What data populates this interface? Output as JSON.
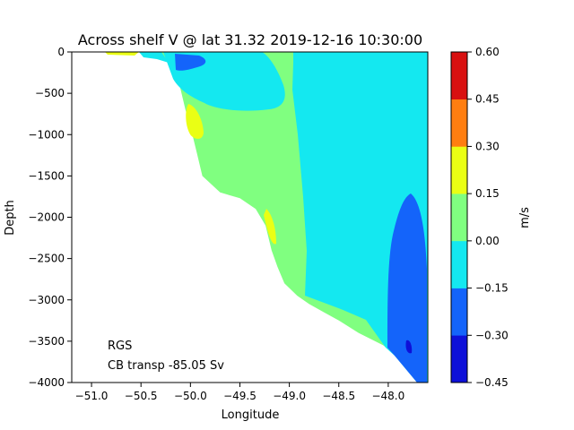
{
  "chart_data": {
    "type": "contourf",
    "title": "Across shelf V @ lat 31.32 2019-12-16 10:30:00",
    "xlabel": "Longitude",
    "ylabel": "Depth",
    "xlim": [
      -51.2,
      -47.6
    ],
    "ylim": [
      -4000,
      0
    ],
    "xticks": [
      -51.0,
      -50.5,
      -50.0,
      -49.5,
      -49.0,
      -48.5,
      -48.0
    ],
    "xtick_labels": [
      "−51.0",
      "−50.5",
      "−50.0",
      "−49.5",
      "−49.0",
      "−48.5",
      "−48.0"
    ],
    "yticks": [
      0,
      -500,
      -1000,
      -1500,
      -2000,
      -2500,
      -3000,
      -3500,
      -4000
    ],
    "ytick_labels": [
      "0",
      "−500",
      "−1000",
      "−1500",
      "−2000",
      "−2500",
      "−3000",
      "−3500",
      "−4000"
    ],
    "grid": false,
    "annotations": [
      "RGS",
      "CB transp -85.05 Sv"
    ],
    "colorbar": {
      "label": "m/s",
      "levels": [
        -0.45,
        -0.3,
        -0.15,
        0.0,
        0.15,
        0.3,
        0.45,
        0.6
      ],
      "tick_labels": [
        "−0.45",
        "−0.30",
        "−0.15",
        "0.00",
        "0.15",
        "0.30",
        "0.45",
        "0.60"
      ],
      "colors": [
        "#0e10d8",
        "#1464fa",
        "#14e8f0",
        "#80ff80",
        "#eaff14",
        "#ff7e10",
        "#d81010"
      ]
    },
    "bottom_profile": [
      [
        -50.9,
        0
      ],
      [
        -50.45,
        0
      ],
      [
        -50.18,
        -150
      ],
      [
        -50.12,
        -350
      ],
      [
        -50.05,
        -700
      ],
      [
        -49.98,
        -1000
      ],
      [
        -49.93,
        -1250
      ],
      [
        -49.88,
        -1500
      ],
      [
        -49.7,
        -1700
      ],
      [
        -49.5,
        -1770
      ],
      [
        -49.34,
        -1900
      ],
      [
        -49.24,
        -2100
      ],
      [
        -49.18,
        -2400
      ],
      [
        -49.12,
        -2600
      ],
      [
        -49.05,
        -2800
      ],
      [
        -48.92,
        -2950
      ],
      [
        -48.8,
        -3050
      ],
      [
        -48.65,
        -3150
      ],
      [
        -48.5,
        -3250
      ],
      [
        -48.3,
        -3400
      ],
      [
        -48.05,
        -3550
      ],
      [
        -47.9,
        -3700
      ],
      [
        -47.7,
        -3900
      ],
      [
        -47.6,
        -4000
      ]
    ],
    "features": [
      {
        "value_range": [
          -0.15,
          0.0
        ],
        "description": "upper-slope and offshore band"
      },
      {
        "value_range": [
          -0.3,
          -0.15
        ],
        "description": "near-surface core at shelf break"
      },
      {
        "value_range": [
          -0.3,
          -0.15
        ],
        "description": "deep western boundary core near -47.8"
      },
      {
        "value_range": [
          -0.45,
          -0.3
        ],
        "description": "small deep core near -47.75"
      },
      {
        "value_range": [
          0.15,
          0.3
        ],
        "description": "slope cores near -49.95 and -49.1"
      }
    ]
  }
}
